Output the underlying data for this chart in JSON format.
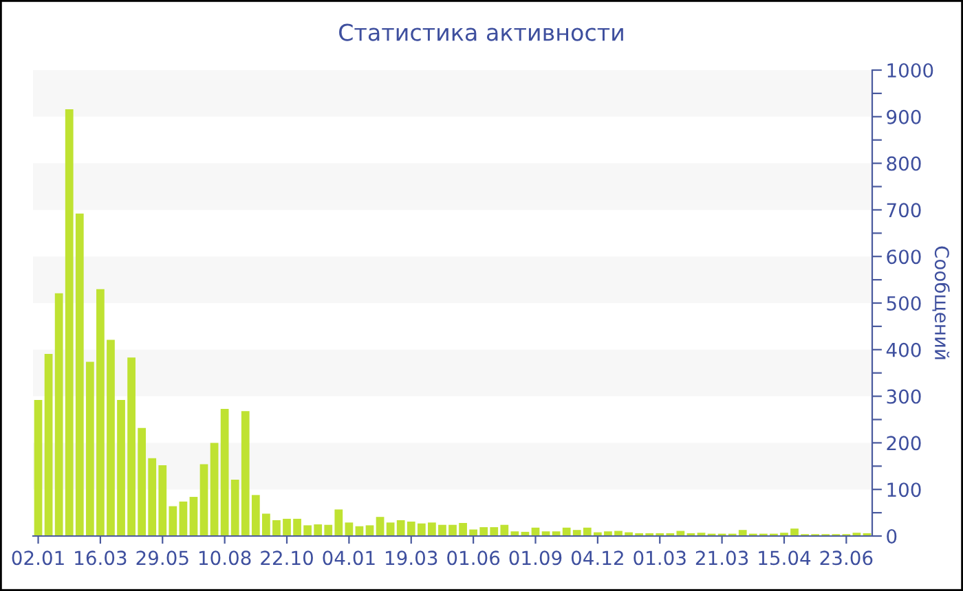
{
  "chart_data": {
    "type": "bar",
    "title": "Статистика активности",
    "ylabel": "Сообщений",
    "categories": [
      "02.01",
      null,
      null,
      null,
      null,
      null,
      "16.03",
      null,
      null,
      null,
      null,
      null,
      "29.05",
      null,
      null,
      null,
      null,
      null,
      "10.08",
      null,
      null,
      null,
      null,
      null,
      "22.10",
      null,
      null,
      null,
      null,
      null,
      "04.01",
      null,
      null,
      null,
      null,
      null,
      "19.03",
      null,
      null,
      null,
      null,
      null,
      "01.06",
      null,
      null,
      null,
      null,
      null,
      "01.09",
      null,
      null,
      null,
      null,
      null,
      "04.12",
      null,
      null,
      null,
      null,
      null,
      "01.03",
      null,
      null,
      null,
      null,
      null,
      "21.03",
      null,
      null,
      null,
      null,
      null,
      "15.04",
      null,
      null,
      null,
      null,
      null,
      "23.06",
      null,
      null
    ],
    "values": [
      292,
      391,
      521,
      916,
      692,
      374,
      530,
      421,
      292,
      383,
      232,
      167,
      152,
      64,
      74,
      84,
      154,
      200,
      273,
      121,
      268,
      88,
      48,
      34,
      37,
      37,
      23,
      25,
      24,
      57,
      29,
      21,
      23,
      41,
      29,
      34,
      31,
      27,
      29,
      24,
      24,
      28,
      14,
      19,
      19,
      24,
      10,
      9,
      18,
      10,
      10,
      18,
      13,
      18,
      8,
      10,
      11,
      8,
      6,
      6,
      6,
      6,
      11,
      6,
      7,
      5,
      5,
      5,
      13,
      5,
      5,
      5,
      7,
      16,
      4,
      4,
      4,
      4,
      4,
      7,
      6
    ],
    "color": "#bfe232",
    "ylim": [
      0,
      1000
    ],
    "yticks": [
      0,
      {
        "value": 50,
        "label": null
      },
      100,
      {
        "value": 150,
        "label": null
      },
      200,
      {
        "value": 250,
        "label": null
      },
      300,
      {
        "value": 350,
        "label": null
      },
      400,
      {
        "value": 450,
        "label": null
      },
      500,
      {
        "value": 550,
        "label": null
      },
      600,
      {
        "value": 650,
        "label": null
      },
      700,
      {
        "value": 750,
        "label": null
      },
      800,
      {
        "value": 850,
        "label": null
      },
      900,
      {
        "value": 950,
        "label": null
      },
      1000
    ],
    "bands": [
      {
        "axis": "y",
        "from": 100,
        "to": 200,
        "color": "#f7f7f7"
      },
      {
        "axis": "y",
        "from": 300,
        "to": 400,
        "color": "#f7f7f7"
      },
      {
        "axis": "y",
        "from": 500,
        "to": 600,
        "color": "#f7f7f7"
      },
      {
        "axis": "y",
        "from": 700,
        "to": 800,
        "color": "#f7f7f7"
      },
      {
        "axis": "y",
        "from": 900,
        "to": 1000,
        "color": "#f7f7f7"
      }
    ],
    "grid": false,
    "legend": false
  }
}
